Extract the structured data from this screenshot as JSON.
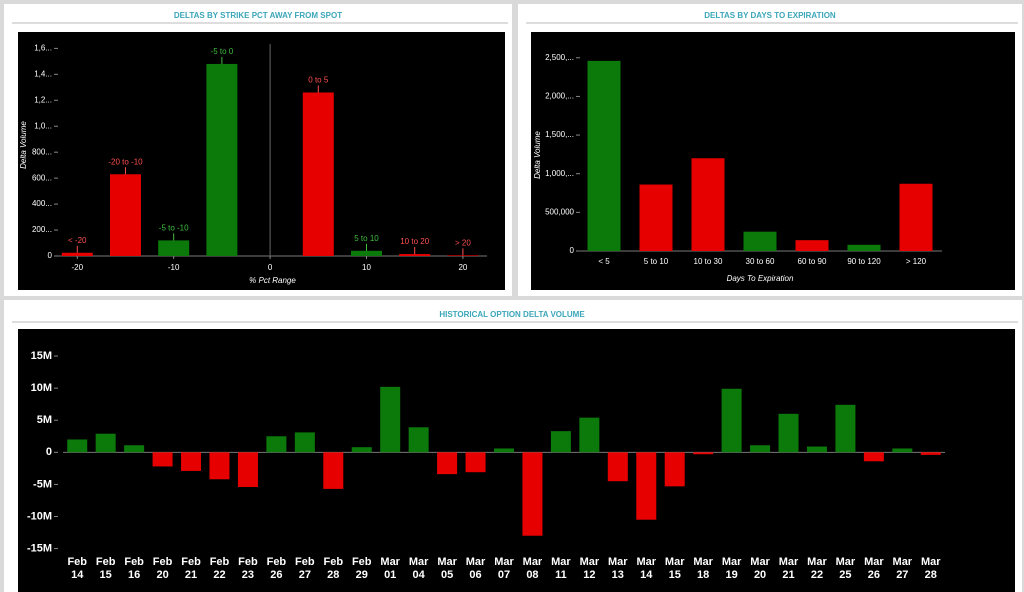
{
  "chart_data": [
    {
      "type": "bar",
      "title": "DELTAS BY STRIKE PCT AWAY FROM SPOT",
      "x_label": "% Pct Range",
      "y_label": "Delta Volume",
      "x": [
        -20,
        -15,
        -10,
        -5,
        5,
        10,
        15,
        20
      ],
      "values": [
        25000,
        630000,
        120000,
        1480000,
        1260000,
        40000,
        15000,
        5000
      ],
      "labels": [
        "< -20",
        "-20 to -10",
        "-5 to -10",
        "-5 to 0",
        "0 to 5",
        "5 to 10",
        "10 to 20",
        "> 20"
      ],
      "colors": [
        "#e60000",
        "#e60000",
        "#0b7a0b",
        "#0b7a0b",
        "#e60000",
        "#0b7a0b",
        "#e60000",
        "#e60000"
      ],
      "label_colors": [
        "#ff5050",
        "#ff5050",
        "#3fbf3f",
        "#3fbf3f",
        "#ff5050",
        "#3fbf3f",
        "#ff5050",
        "#ff5050"
      ],
      "xlim": [
        -22,
        22.5
      ],
      "xticks": [
        -20,
        -10,
        0,
        10,
        20
      ],
      "zero_line": true,
      "ylim": [
        0,
        1680000
      ],
      "yticks": [
        0,
        {
          "value": 200000,
          "label": "200..."
        },
        {
          "value": 400000,
          "label": "400..."
        },
        {
          "value": 600000,
          "label": "600..."
        },
        {
          "value": 800000,
          "label": "800..."
        },
        {
          "value": 1000000,
          "label": "1,0..."
        },
        {
          "value": 1200000,
          "label": "1,2..."
        },
        {
          "value": 1400000,
          "label": "1,4..."
        },
        {
          "value": 1600000,
          "label": "1,6..."
        }
      ]
    },
    {
      "type": "bar",
      "title": "DELTAS BY DAYS TO EXPIRATION",
      "x_label": "Days To Expiration",
      "y_label": "Delta Volume",
      "categories": [
        "< 5",
        "5 to 10",
        "10 to 30",
        "30 to 60",
        "60 to 90",
        "90 to 120",
        "> 120"
      ],
      "values": [
        2460000,
        860000,
        1200000,
        250000,
        140000,
        80000,
        870000
      ],
      "colors": [
        "#0b7a0b",
        "#e60000",
        "#e60000",
        "#0b7a0b",
        "#e60000",
        "#0b7a0b",
        "#e60000"
      ],
      "ylim": [
        0,
        2730000
      ],
      "yticks": [
        0,
        {
          "value": 500000,
          "label": "500,000"
        },
        {
          "value": 1000000,
          "label": "1,000,..."
        },
        {
          "value": 1500000,
          "label": "1,500,..."
        },
        {
          "value": 2000000,
          "label": "2,000,..."
        },
        {
          "value": 2500000,
          "label": "2,500,..."
        }
      ]
    },
    {
      "type": "bar",
      "title": "HISTORICAL OPTION DELTA VOLUME",
      "categories": [
        "Feb 14",
        "Feb 15",
        "Feb 16",
        "Feb 20",
        "Feb 21",
        "Feb 22",
        "Feb 23",
        "Feb 26",
        "Feb 27",
        "Feb 28",
        "Feb 29",
        "Mar 01",
        "Mar 04",
        "Mar 05",
        "Mar 06",
        "Mar 07",
        "Mar 08",
        "Mar 11",
        "Mar 12",
        "Mar 13",
        "Mar 14",
        "Mar 15",
        "Mar 18",
        "Mar 19",
        "Mar 20",
        "Mar 21",
        "Mar 22",
        "Mar 25",
        "Mar 26",
        "Mar 27",
        "Mar 28"
      ],
      "values": [
        2000000,
        2900000,
        1100000,
        -2200000,
        -2900000,
        -4200000,
        -5400000,
        2500000,
        3100000,
        -5700000,
        800000,
        10200000,
        3900000,
        -3400000,
        -3100000,
        600000,
        -13000000,
        3300000,
        5400000,
        -4500000,
        -10500000,
        -5300000,
        -300000,
        9900000,
        1100000,
        6000000,
        900000,
        7400000,
        -1400000,
        600000,
        -400000
      ],
      "positive_color": "#0b7a0b",
      "negative_color": "#e60000",
      "ylim": [
        -16000000,
        17500000
      ],
      "yticks": [
        {
          "value": -15000000,
          "label": "-15M"
        },
        {
          "value": -10000000,
          "label": "-10M"
        },
        {
          "value": -5000000,
          "label": "-5M"
        },
        0,
        {
          "value": 5000000,
          "label": "5M"
        },
        {
          "value": 10000000,
          "label": "10M"
        },
        {
          "value": 15000000,
          "label": "15M"
        }
      ]
    }
  ]
}
